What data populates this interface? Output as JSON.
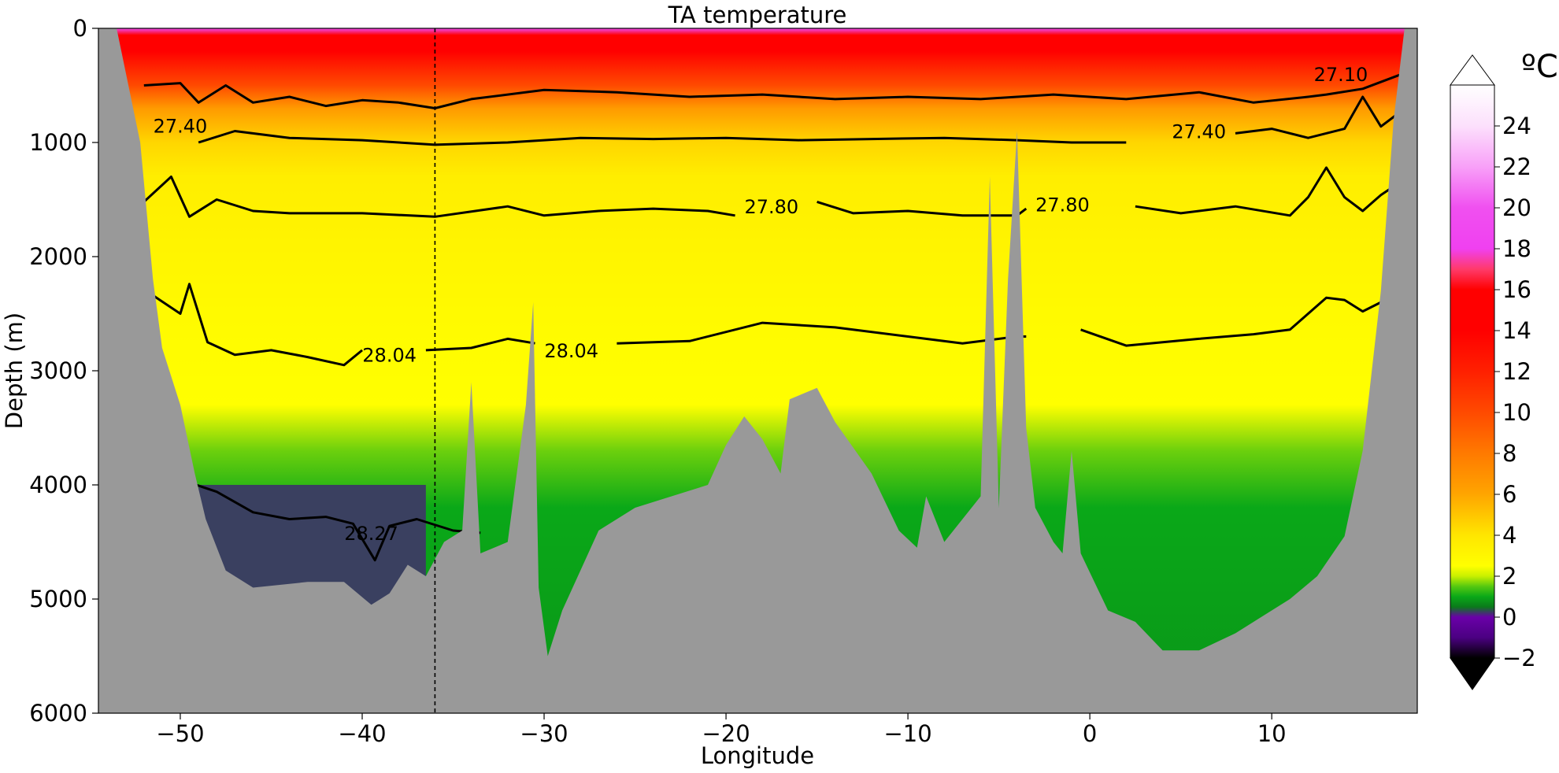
{
  "chart_data": {
    "type": "heatmap",
    "title": "TA temperature",
    "xlabel": "Longitude",
    "ylabel": "Depth (m)",
    "xlim": [
      -54.5,
      18
    ],
    "ylim": [
      0,
      6000
    ],
    "y_inverted": true,
    "x_ticks": [
      -50,
      -40,
      -30,
      -20,
      -10,
      0,
      10
    ],
    "x_tick_labels": [
      "−50",
      "−40",
      "−30",
      "−20",
      "−10",
      "0",
      "10"
    ],
    "y_ticks": [
      0,
      1000,
      2000,
      3000,
      4000,
      5000,
      6000
    ],
    "y_tick_labels": [
      "0",
      "1000",
      "2000",
      "3000",
      "4000",
      "5000",
      "6000"
    ],
    "colorbar": {
      "unit": "ºC",
      "min": -2,
      "max": 26,
      "extend": "both",
      "ticks": [
        -2,
        0,
        2,
        4,
        6,
        8,
        10,
        12,
        14,
        16,
        18,
        20,
        22,
        24
      ],
      "tick_labels": [
        "−2",
        "0",
        "2",
        "4",
        "6",
        "8",
        "10",
        "12",
        "14",
        "16",
        "18",
        "20",
        "22",
        "24"
      ],
      "colors": [
        {
          "v": -2,
          "c": "#000000"
        },
        {
          "v": -1,
          "c": "#4b0082"
        },
        {
          "v": 0,
          "c": "#6a00a8"
        },
        {
          "v": 0.5,
          "c": "#0a7a1a"
        },
        {
          "v": 1,
          "c": "#0aa818"
        },
        {
          "v": 1.5,
          "c": "#55c810"
        },
        {
          "v": 2,
          "c": "#c8f000"
        },
        {
          "v": 2.5,
          "c": "#ffff00"
        },
        {
          "v": 4,
          "c": "#ffe600"
        },
        {
          "v": 6,
          "c": "#ffa500"
        },
        {
          "v": 8,
          "c": "#ff7a00"
        },
        {
          "v": 10,
          "c": "#ff4a00"
        },
        {
          "v": 12,
          "c": "#ff2000"
        },
        {
          "v": 14,
          "c": "#ff0000"
        },
        {
          "v": 16,
          "c": "#ff0000"
        },
        {
          "v": 17,
          "c": "#ff3a6a"
        },
        {
          "v": 18,
          "c": "#f040f0"
        },
        {
          "v": 20,
          "c": "#f050f0"
        },
        {
          "v": 22,
          "c": "#f8a0f8"
        },
        {
          "v": 24,
          "c": "#fce0fc"
        },
        {
          "v": 26,
          "c": "#ffffff"
        }
      ]
    },
    "temperature_profile": [
      {
        "depth": 0,
        "temp": 19
      },
      {
        "depth": 60,
        "temp": 16
      },
      {
        "depth": 200,
        "temp": 14
      },
      {
        "depth": 500,
        "temp": 10
      },
      {
        "depth": 700,
        "temp": 6.5
      },
      {
        "depth": 1000,
        "temp": 4.5
      },
      {
        "depth": 1300,
        "temp": 3.5
      },
      {
        "depth": 2500,
        "temp": 2.8
      },
      {
        "depth": 3300,
        "temp": 2.5
      },
      {
        "depth": 3700,
        "temp": 1.6
      },
      {
        "depth": 4200,
        "temp": 1.0
      },
      {
        "depth": 6000,
        "temp": 0.8
      }
    ],
    "cold_basin": {
      "x_range": [
        -49,
        -36.5
      ],
      "top_depth": 4000,
      "temp": -0.5
    },
    "bathymetry": [
      [
        -54.5,
        0
      ],
      [
        -53.5,
        0
      ],
      [
        -52.2,
        1000
      ],
      [
        -51.5,
        2200
      ],
      [
        -51,
        2800
      ],
      [
        -50,
        3300
      ],
      [
        -49.2,
        3900
      ],
      [
        -48.6,
        4300
      ],
      [
        -47.5,
        4750
      ],
      [
        -46,
        4900
      ],
      [
        -43,
        4850
      ],
      [
        -41,
        4850
      ],
      [
        -39.5,
        5050
      ],
      [
        -38.5,
        4950
      ],
      [
        -37.5,
        4700
      ],
      [
        -36.5,
        4800
      ],
      [
        -35.5,
        4500
      ],
      [
        -34.5,
        4400
      ],
      [
        -34,
        3100
      ],
      [
        -33.5,
        4600
      ],
      [
        -32,
        4500
      ],
      [
        -31,
        3300
      ],
      [
        -30.6,
        2400
      ],
      [
        -30.3,
        4900
      ],
      [
        -29.8,
        5500
      ],
      [
        -29,
        5100
      ],
      [
        -27,
        4400
      ],
      [
        -25,
        4200
      ],
      [
        -23,
        4100
      ],
      [
        -21,
        4000
      ],
      [
        -20,
        3650
      ],
      [
        -19,
        3400
      ],
      [
        -18,
        3600
      ],
      [
        -17,
        3900
      ],
      [
        -16.5,
        3250
      ],
      [
        -15,
        3150
      ],
      [
        -14,
        3450
      ],
      [
        -12,
        3900
      ],
      [
        -10.5,
        4400
      ],
      [
        -9.5,
        4550
      ],
      [
        -9,
        4100
      ],
      [
        -8,
        4500
      ],
      [
        -7,
        4300
      ],
      [
        -6,
        4100
      ],
      [
        -5.5,
        1300
      ],
      [
        -5,
        4200
      ],
      [
        -4.5,
        2200
      ],
      [
        -4,
        900
      ],
      [
        -3.5,
        3500
      ],
      [
        -3,
        4200
      ],
      [
        -2,
        4500
      ],
      [
        -1.5,
        4600
      ],
      [
        -1,
        3700
      ],
      [
        -0.5,
        4600
      ],
      [
        1,
        5100
      ],
      [
        2.5,
        5200
      ],
      [
        4,
        5450
      ],
      [
        6,
        5450
      ],
      [
        8,
        5300
      ],
      [
        9.5,
        5150
      ],
      [
        11,
        5000
      ],
      [
        12.5,
        4800
      ],
      [
        14,
        4450
      ],
      [
        15,
        3700
      ],
      [
        16,
        2300
      ],
      [
        16.7,
        800
      ],
      [
        17.3,
        0
      ],
      [
        18,
        0
      ]
    ],
    "contours": [
      {
        "label": "27.10",
        "label_at": [
          13.8,
          400
        ],
        "points": [
          [
            -52,
            500
          ],
          [
            -50,
            480
          ],
          [
            -49,
            650
          ],
          [
            -47.5,
            500
          ],
          [
            -46,
            650
          ],
          [
            -44,
            600
          ],
          [
            -42,
            680
          ],
          [
            -40,
            630
          ],
          [
            -38,
            650
          ],
          [
            -36,
            700
          ],
          [
            -34,
            620
          ],
          [
            -30,
            540
          ],
          [
            -26,
            560
          ],
          [
            -22,
            600
          ],
          [
            -18,
            580
          ],
          [
            -14,
            620
          ],
          [
            -10,
            600
          ],
          [
            -6,
            620
          ],
          [
            -2,
            580
          ],
          [
            2,
            620
          ],
          [
            6,
            560
          ],
          [
            9,
            650
          ],
          [
            12,
            600
          ],
          [
            13,
            580
          ],
          [
            15,
            530
          ],
          [
            17.5,
            380
          ]
        ]
      },
      {
        "label": "27.40",
        "label_at": [
          -50,
          850
        ],
        "points": [
          [
            -49,
            1000
          ],
          [
            -47,
            900
          ],
          [
            -44,
            960
          ],
          [
            -40,
            980
          ],
          [
            -36,
            1020
          ],
          [
            -32,
            1000
          ],
          [
            -28,
            960
          ],
          [
            -24,
            970
          ],
          [
            -20,
            960
          ],
          [
            -16,
            980
          ],
          [
            -12,
            970
          ],
          [
            -8,
            960
          ],
          [
            -4,
            980
          ],
          [
            -1,
            1000
          ],
          [
            2,
            1000
          ]
        ]
      },
      {
        "label": "27.40",
        "label_at": [
          6,
          900
        ],
        "points": [
          [
            8,
            920
          ],
          [
            10,
            880
          ],
          [
            12,
            960
          ],
          [
            14,
            880
          ],
          [
            15,
            600
          ],
          [
            16,
            860
          ],
          [
            17.5,
            680
          ]
        ]
      },
      {
        "label": "27.80",
        "label_at": [
          -17.5,
          1560
        ],
        "points": [
          [
            -52,
            1520
          ],
          [
            -50.5,
            1300
          ],
          [
            -49.5,
            1650
          ],
          [
            -48,
            1500
          ],
          [
            -46,
            1600
          ],
          [
            -44,
            1620
          ],
          [
            -40,
            1620
          ],
          [
            -36,
            1650
          ],
          [
            -32,
            1560
          ],
          [
            -30,
            1640
          ],
          [
            -27,
            1600
          ],
          [
            -24,
            1580
          ],
          [
            -21,
            1600
          ],
          [
            -19.5,
            1640
          ]
        ]
      },
      {
        "label": "27.80",
        "label_at": [
          -1.5,
          1540
        ],
        "points": [
          [
            -15,
            1520
          ],
          [
            -13,
            1620
          ],
          [
            -10,
            1600
          ],
          [
            -7,
            1640
          ],
          [
            -4,
            1640
          ],
          [
            -3.5,
            1580
          ]
        ]
      },
      {
        "label": "",
        "label_at": [
          0,
          0
        ],
        "points": [
          [
            2.5,
            1560
          ],
          [
            5,
            1620
          ],
          [
            8,
            1560
          ],
          [
            11,
            1640
          ],
          [
            12,
            1480
          ],
          [
            13,
            1220
          ],
          [
            14,
            1480
          ],
          [
            15,
            1600
          ],
          [
            16,
            1460
          ],
          [
            17.5,
            1300
          ]
        ]
      },
      {
        "label": "28.04",
        "label_at": [
          -38.5,
          2860
        ],
        "points": [
          [
            -51.5,
            2340
          ],
          [
            -50,
            2500
          ],
          [
            -49.5,
            2240
          ],
          [
            -48.5,
            2750
          ],
          [
            -47,
            2860
          ],
          [
            -45,
            2820
          ],
          [
            -43,
            2880
          ],
          [
            -41,
            2950
          ],
          [
            -40,
            2820
          ]
        ]
      },
      {
        "label": "28.04",
        "label_at": [
          -28.5,
          2820
        ],
        "points": [
          [
            -36.5,
            2820
          ],
          [
            -34,
            2800
          ],
          [
            -32,
            2720
          ],
          [
            -30.5,
            2760
          ]
        ]
      },
      {
        "label": "",
        "label_at": [
          0,
          0
        ],
        "points": [
          [
            -26,
            2760
          ],
          [
            -22,
            2740
          ],
          [
            -18,
            2580
          ],
          [
            -14,
            2620
          ],
          [
            -10,
            2700
          ],
          [
            -7,
            2760
          ],
          [
            -4,
            2700
          ],
          [
            -3.5,
            2700
          ]
        ]
      },
      {
        "label": "",
        "label_at": [
          0,
          0
        ],
        "points": [
          [
            -0.5,
            2640
          ],
          [
            2,
            2780
          ],
          [
            6,
            2720
          ],
          [
            9,
            2680
          ],
          [
            11,
            2640
          ],
          [
            13,
            2360
          ],
          [
            14,
            2380
          ],
          [
            15,
            2480
          ],
          [
            16,
            2400
          ],
          [
            17.5,
            2440
          ]
        ]
      },
      {
        "label": "28.27",
        "label_at": [
          -39.5,
          4420
        ],
        "points": [
          [
            -49.5,
            3980
          ],
          [
            -48,
            4060
          ],
          [
            -46,
            4240
          ],
          [
            -44,
            4300
          ],
          [
            -42,
            4280
          ],
          [
            -40.5,
            4340
          ],
          [
            -39.3,
            4660
          ],
          [
            -38.5,
            4360
          ],
          [
            -37,
            4300
          ],
          [
            -35,
            4400
          ],
          [
            -33.5,
            4420
          ]
        ]
      }
    ],
    "reference_longitude": -36,
    "annotations": [
      "TA temperature"
    ]
  }
}
